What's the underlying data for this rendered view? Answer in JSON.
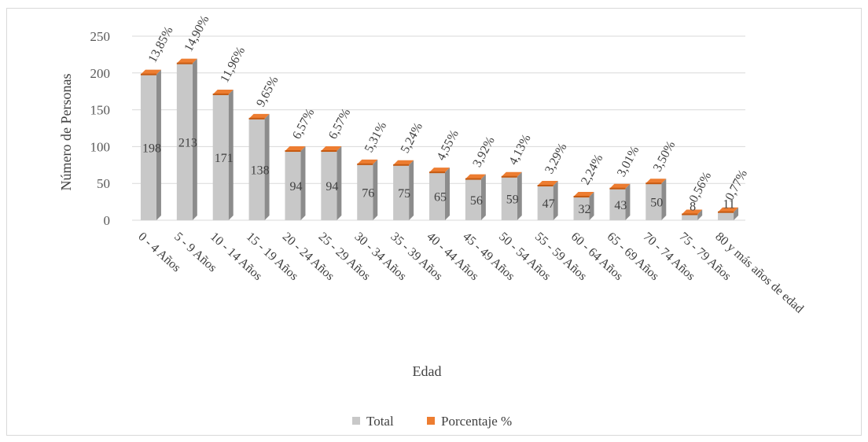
{
  "chart_data": {
    "type": "bar",
    "categories": [
      "0 - 4 Años",
      "5 - 9 Años",
      "10 - 14 Años",
      "15 - 19 Años",
      "20 - 24 Años",
      "25 - 29 Años",
      "30 - 34 Años",
      "35 - 39 Años",
      "40 - 44 Años",
      "45 - 49 Años",
      "50 - 54 Años",
      "55 - 59 Años",
      "60 - 64 Años",
      "65 - 69 Años",
      "70 - 74 Años",
      "75 - 79 Años",
      "80 y más años de edad"
    ],
    "series": [
      {
        "name": "Total",
        "values": [
          198,
          213,
          171,
          138,
          94,
          94,
          76,
          75,
          65,
          56,
          59,
          47,
          32,
          43,
          50,
          8,
          11
        ],
        "color": "#c8c8c8"
      },
      {
        "name": "Porcentaje %",
        "values": [
          13.85,
          14.9,
          11.96,
          9.65,
          6.57,
          6.57,
          5.31,
          5.24,
          4.55,
          3.92,
          4.13,
          3.29,
          2.24,
          3.01,
          3.5,
          0.56,
          0.77
        ],
        "color": "#ed7d31"
      }
    ],
    "value_labels": [
      "198",
      "213",
      "171",
      "138",
      "94",
      "94",
      "76",
      "75",
      "65",
      "56",
      "59",
      "47",
      "32",
      "43",
      "50",
      "8",
      "11"
    ],
    "percent_labels": [
      "13,85%",
      "14,90%",
      "11,96%",
      "9,65%",
      "6,57%",
      "6,57%",
      "5,31%",
      "5,24%",
      "4,55%",
      "3,92%",
      "4,13%",
      "3,29%",
      "2,24%",
      "3,01%",
      "3,50%",
      "0,56%",
      "0,77%"
    ],
    "y_ticks": [
      "0",
      "50",
      "100",
      "150",
      "200",
      "250"
    ],
    "ylim": [
      0,
      250
    ],
    "xlabel": "Edad",
    "ylabel": "Número de Personas",
    "grid": true,
    "legend": "bottom"
  }
}
